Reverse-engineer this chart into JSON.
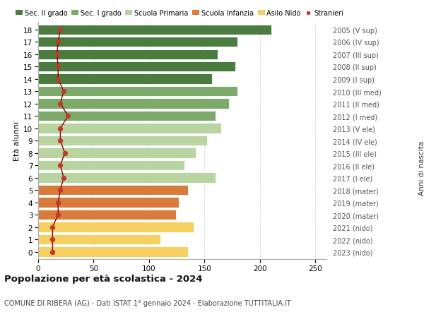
{
  "ages": [
    18,
    17,
    16,
    15,
    14,
    13,
    12,
    11,
    10,
    9,
    8,
    7,
    6,
    5,
    4,
    3,
    2,
    1,
    0
  ],
  "bar_values": [
    210,
    180,
    162,
    178,
    157,
    180,
    172,
    160,
    165,
    152,
    142,
    132,
    160,
    135,
    127,
    124,
    140,
    110,
    135
  ],
  "stranieri": [
    20,
    18,
    17,
    18,
    18,
    23,
    20,
    27,
    20,
    20,
    24,
    20,
    23,
    20,
    18,
    18,
    13,
    13,
    13
  ],
  "right_labels": [
    "2005 (V sup)",
    "2006 (IV sup)",
    "2007 (III sup)",
    "2008 (II sup)",
    "2009 (I sup)",
    "2010 (III med)",
    "2011 (II med)",
    "2012 (I med)",
    "2013 (V ele)",
    "2014 (IV ele)",
    "2015 (III ele)",
    "2016 (II ele)",
    "2017 (I ele)",
    "2018 (mater)",
    "2019 (mater)",
    "2020 (mater)",
    "2021 (nido)",
    "2022 (nido)",
    "2023 (nido)"
  ],
  "bar_colors": [
    "#4a7c3f",
    "#4a7c3f",
    "#4a7c3f",
    "#4a7c3f",
    "#4a7c3f",
    "#7daa6a",
    "#7daa6a",
    "#7daa6a",
    "#b8d4a0",
    "#b8d4a0",
    "#b8d4a0",
    "#b8d4a0",
    "#b8d4a0",
    "#d97b3a",
    "#d97b3a",
    "#d97b3a",
    "#f5d060",
    "#f5d060",
    "#f5d060"
  ],
  "legend_labels": [
    "Sec. II grado",
    "Sec. I grado",
    "Scuola Primaria",
    "Scuola Infanzia",
    "Asilo Nido",
    "Stranieri"
  ],
  "legend_colors": [
    "#4a7c3f",
    "#7daa6a",
    "#b8d4a0",
    "#d97b3a",
    "#f5d060",
    "#c0392b"
  ],
  "title": "Popolazione per età scolastica - 2024",
  "subtitle": "COMUNE DI RIBERA (AG) - Dati ISTAT 1° gennaio 2024 - Elaborazione TUTTITALIA.IT",
  "ylabel_left": "Età alunni",
  "ylabel_right": "Anni di nascita",
  "xlim": [
    0,
    260
  ],
  "background_color": "#ffffff",
  "bar_height": 0.82,
  "stranieri_color": "#c0392b",
  "stranieri_line_color": "#8b0000",
  "grid_color": "#cccccc"
}
